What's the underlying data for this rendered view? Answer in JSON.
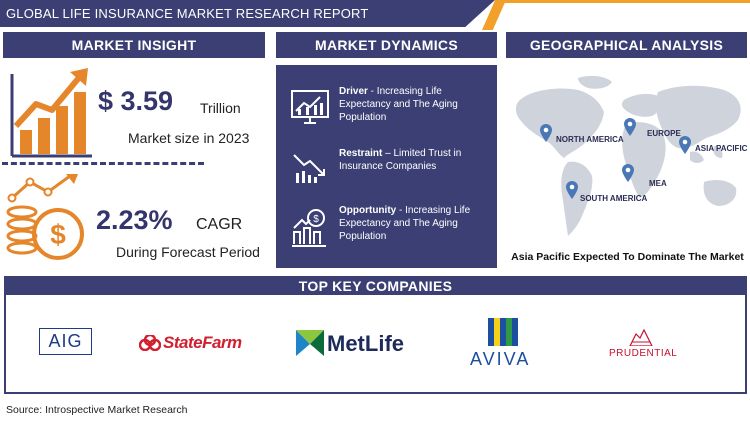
{
  "header": {
    "title": "GLOBAL LIFE INSURANCE MARKET RESEARCH REPORT"
  },
  "sections": {
    "insight": "MARKET INSIGHT",
    "dynamics": "MARKET DYNAMICS",
    "geo": "GEOGRAPHICAL ANALYSIS",
    "companies": "TOP KEY COMPANIES"
  },
  "insight": {
    "market_value": "$ 3.59",
    "market_unit": "Trillion",
    "market_desc": "Market size in 2023",
    "cagr_value": "2.23%",
    "cagr_label": "CAGR",
    "cagr_desc": "During Forecast Period"
  },
  "dynamics": [
    {
      "label": "Driver",
      "text": " - Increasing Life Expectancy and The Aging Population",
      "icon": "monitor-chart-icon"
    },
    {
      "label": "Restraint",
      "text": " – Limited Trust in Insurance Companies",
      "icon": "declining-chart-icon"
    },
    {
      "label": "Opportunity",
      "text": " - Increasing Life Expectancy and The Aging Population",
      "icon": "growth-opportunity-icon"
    }
  ],
  "geo": {
    "regions": [
      "NORTH AMERICA",
      "EUROPE",
      "ASIA PACIFIC",
      "MEA",
      "SOUTH AMERICA"
    ],
    "footer": "Asia Pacific Expected To Dominate The Market"
  },
  "companies": [
    "AIG",
    "StateFarm",
    "MetLife",
    "AVIVA",
    "PRUDENTIAL"
  ],
  "source": "Source: Introspective Market Research",
  "colors": {
    "navy": "#3b3f73",
    "orange": "#f2a02a",
    "text_dark": "#34356a"
  }
}
